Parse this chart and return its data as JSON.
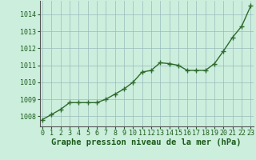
{
  "x": [
    0,
    1,
    2,
    3,
    4,
    5,
    6,
    7,
    8,
    9,
    10,
    11,
    12,
    13,
    14,
    15,
    16,
    17,
    18,
    19,
    20,
    21,
    22,
    23
  ],
  "y": [
    1007.8,
    1008.1,
    1008.4,
    1008.8,
    1008.8,
    1008.8,
    1008.8,
    1009.0,
    1009.3,
    1009.6,
    1010.0,
    1010.6,
    1010.7,
    1011.15,
    1011.1,
    1011.0,
    1010.7,
    1010.7,
    1010.7,
    1011.1,
    1011.85,
    1012.65,
    1013.3,
    1014.5
  ],
  "line_color": "#2d6a2d",
  "marker": "+",
  "markersize": 4,
  "linewidth": 1.0,
  "background_color": "#cceedd",
  "grid_color": "#99bbbb",
  "xlabel": "Graphe pression niveau de la mer (hPa)",
  "xlabel_fontsize": 7.5,
  "xlabel_fontweight": "bold",
  "xlabel_color": "#1a5c1a",
  "tick_fontsize": 6.0,
  "tick_color": "#1a5c1a",
  "yticks": [
    1008,
    1009,
    1010,
    1011,
    1012,
    1013,
    1014
  ],
  "ylim": [
    1007.4,
    1014.8
  ],
  "xlim": [
    -0.3,
    23.3
  ],
  "xticks": [
    0,
    1,
    2,
    3,
    4,
    5,
    6,
    7,
    8,
    9,
    10,
    11,
    12,
    13,
    14,
    15,
    16,
    17,
    18,
    19,
    20,
    21,
    22,
    23
  ]
}
